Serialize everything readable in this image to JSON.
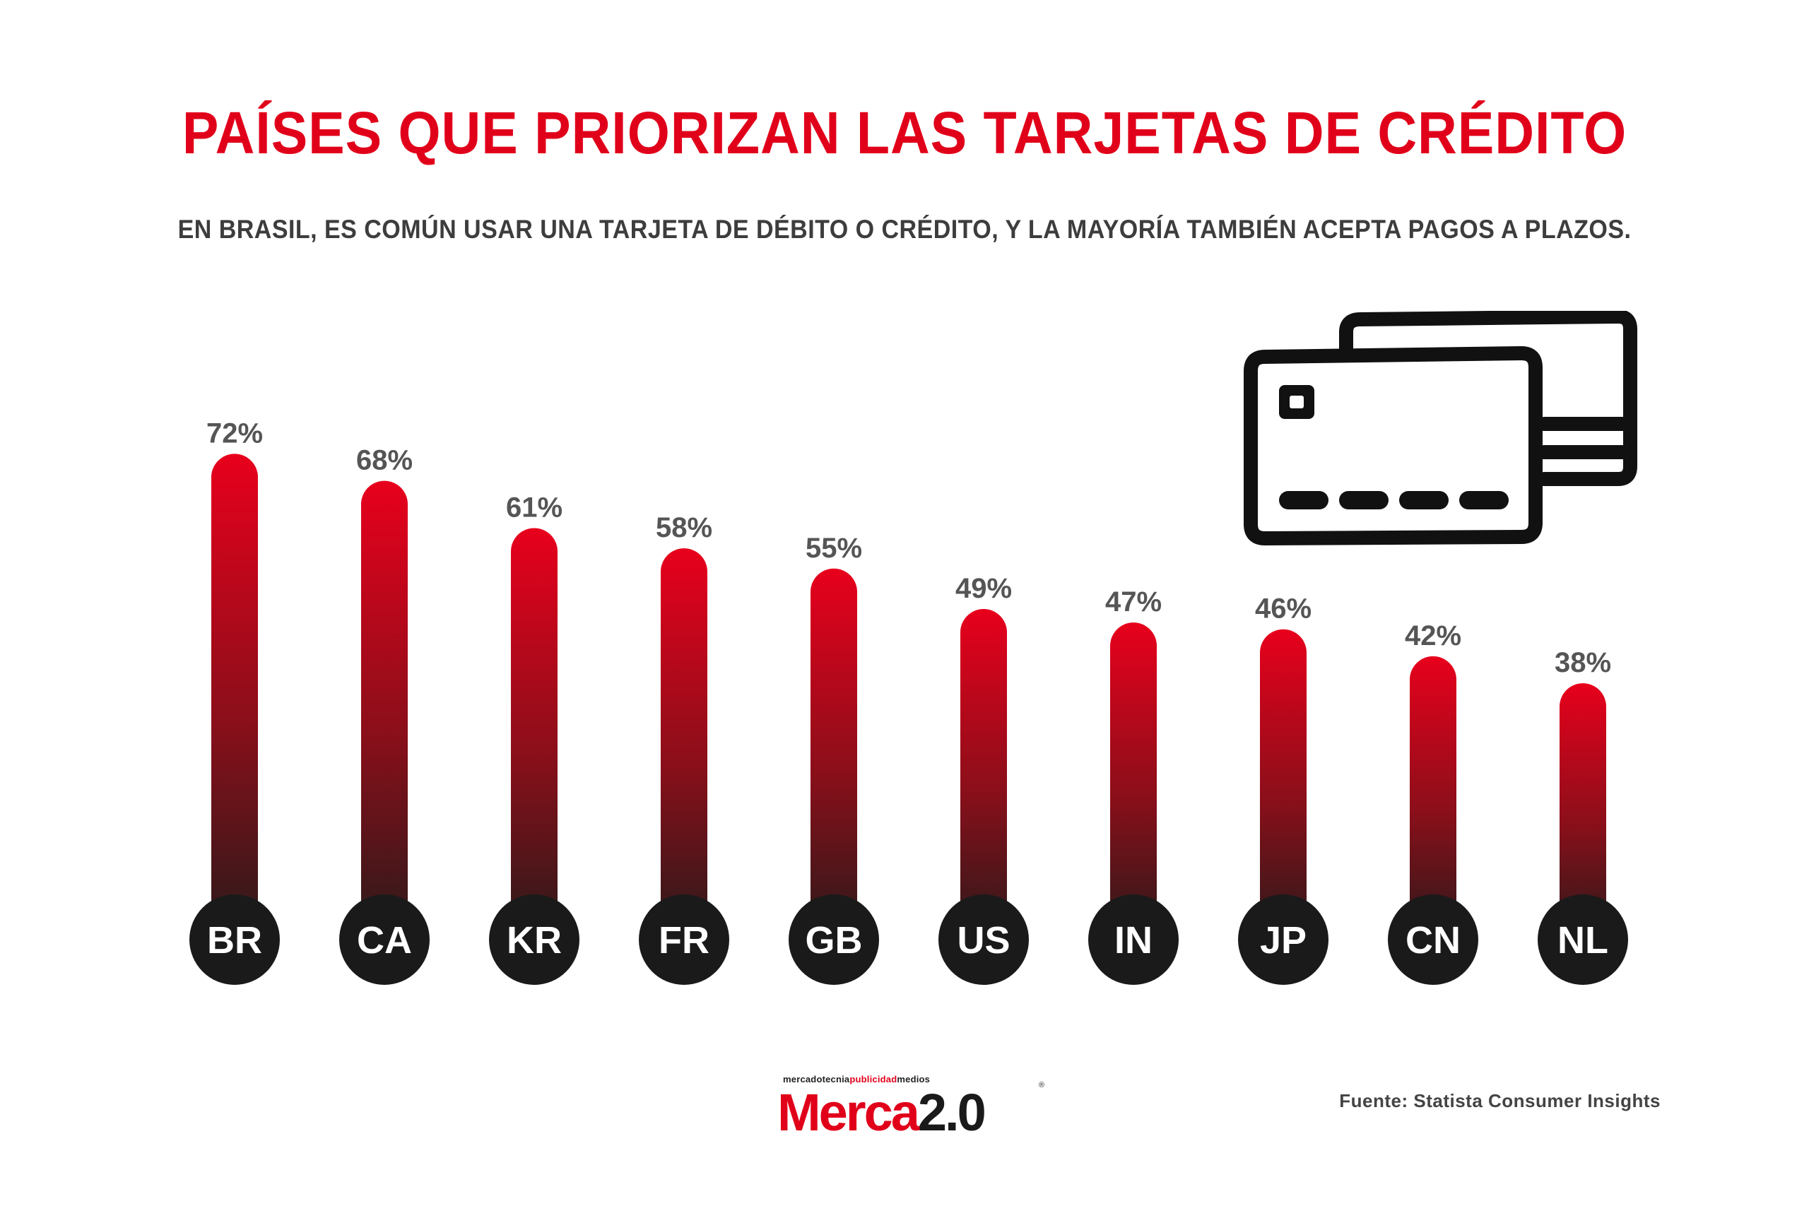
{
  "title": "PAÍSES QUE PRIORIZAN LAS TARJETAS DE CRÉDITO",
  "subtitle": "EN BRASIL, ES COMÚN USAR UNA TARJETA DE DÉBITO O CRÉDITO, Y LA MAYORÍA TAMBIÉN ACEPTA PAGOS A PLAZOS.",
  "colors": {
    "accent": "#e1001a",
    "bar_bottom": "#2a1a1a",
    "circle": "#1a1a1a",
    "label": "#555555"
  },
  "icon": "credit-cards-icon",
  "chart_data": {
    "type": "bar",
    "categories": [
      "BR",
      "CA",
      "KR",
      "FR",
      "GB",
      "US",
      "IN",
      "JP",
      "CN",
      "NL"
    ],
    "values": [
      72,
      68,
      61,
      58,
      55,
      49,
      47,
      46,
      42,
      38
    ],
    "value_labels": [
      "72%",
      "68%",
      "61%",
      "58%",
      "55%",
      "49%",
      "47%",
      "46%",
      "42%",
      "38%"
    ],
    "ylim": [
      0,
      100
    ],
    "grid": false,
    "legend": "none"
  },
  "logo": {
    "tag_a": "mercadotecnia",
    "tag_b": "publicidad",
    "tag_c": "medios",
    "mark_a": "Merca",
    "mark_b": "2.0",
    "reg": "®"
  },
  "source": "Fuente: Statista Consumer Insights"
}
